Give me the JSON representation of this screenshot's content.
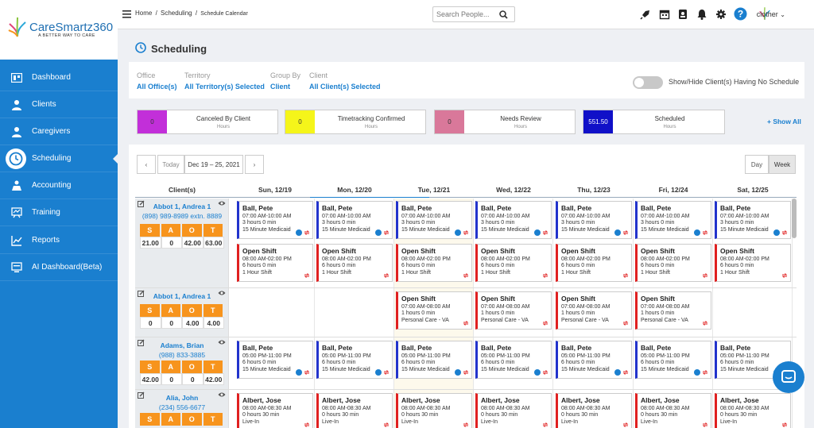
{
  "app": {
    "brand": "CareSmartz360",
    "tagline": "A BETTER WAY TO CARE"
  },
  "sidebar": {
    "items": [
      {
        "label": "Dashboard",
        "icon": "dashboard-icon"
      },
      {
        "label": "Clients",
        "icon": "person-icon"
      },
      {
        "label": "Caregivers",
        "icon": "person-icon"
      },
      {
        "label": "Scheduling",
        "icon": "clock-icon",
        "active": true
      },
      {
        "label": "Accounting",
        "icon": "accounting-icon"
      },
      {
        "label": "Training",
        "icon": "training-icon"
      },
      {
        "label": "Reports",
        "icon": "chart-icon"
      },
      {
        "label": "AI Dashboard(Beta)",
        "icon": "ai-dashboard-icon"
      }
    ]
  },
  "topbar": {
    "breadcrumb": [
      "Home",
      "Scheduling",
      "Schedule Calendar"
    ],
    "search_placeholder": "Search People...",
    "user": "clother"
  },
  "page": {
    "title": "Scheduling"
  },
  "filters": [
    {
      "label": "Office",
      "value": "All Office(s)"
    },
    {
      "label": "Territory",
      "value": "All Territory(s) Selected"
    },
    {
      "label": "Group By",
      "value": "Client"
    },
    {
      "label": "Client",
      "value": "All Client(s) Selected"
    }
  ],
  "toggle_label": "Show/Hide Client(s) Having No Schedule",
  "summary": [
    {
      "label": "Canceled By Client",
      "unit": "Hours",
      "value": "0",
      "color": "#c22fd9"
    },
    {
      "label": "Timetracking Confirmed",
      "unit": "Hours",
      "value": "0",
      "color": "#f5f51a"
    },
    {
      "label": "Needs Review",
      "unit": "Hours",
      "value": "0",
      "color": "#d9789a"
    },
    {
      "label": "Scheduled",
      "unit": "Hours",
      "value": "551.50",
      "color": "#1010c8"
    }
  ],
  "show_all": "+ Show All",
  "calendar": {
    "today_label": "Today",
    "range": "Dec 19 – 25, 2021",
    "views": [
      "Day",
      "Week"
    ],
    "client_header": "Client(s)",
    "days": [
      "Sun, 12/19",
      "Mon, 12/20",
      "Tue, 12/21",
      "Wed, 12/22",
      "Thu, 12/23",
      "Fri, 12/24",
      "Sat, 12/25"
    ]
  },
  "slot_labels": [
    "S",
    "A",
    "O",
    "T"
  ],
  "rows": [
    {
      "client": "Abbot 1, Andrea 1",
      "phone": "(898) 989-8989 extn. 8889",
      "nums": [
        "21.00",
        "0",
        "42.00",
        "63.00"
      ]
    },
    {
      "client": "Abbot 1, Andrea 1",
      "phone": "",
      "nums": [
        "0",
        "0",
        "4.00",
        "4.00"
      ]
    },
    {
      "client": "Adams, Brian",
      "phone": "(988) 833-3885",
      "nums": [
        "42.00",
        "0",
        "0",
        "42.00"
      ]
    },
    {
      "client": "Alia, John",
      "phone": "(234) 556-6677",
      "nums": []
    }
  ],
  "cards": {
    "ball_am": {
      "name": "Ball, Pete",
      "time": "07:00 AM-10:00 AM",
      "dur": "3 hours 0 min",
      "svc": "15 Minute Medicaid"
    },
    "open_day": {
      "name": "Open Shift",
      "time": "08:00 AM-02:00 PM",
      "dur": "6 hours 0 min",
      "svc": "1 Hour Shift"
    },
    "open_am": {
      "name": "Open Shift",
      "time": "07:00 AM-08:00 AM",
      "dur": "1 hours 0 min",
      "svc": "Personal Care - VA"
    },
    "ball_pm": {
      "name": "Ball, Pete",
      "time": "05:00 PM-11:00 PM",
      "dur": "6 hours 0 min",
      "svc": "15 Minute Medicaid"
    },
    "albert": {
      "name": "Albert, Jose",
      "time": "08:00 AM-08:30 AM",
      "dur": "0 hours 30 min",
      "svc": "Live-In"
    }
  }
}
